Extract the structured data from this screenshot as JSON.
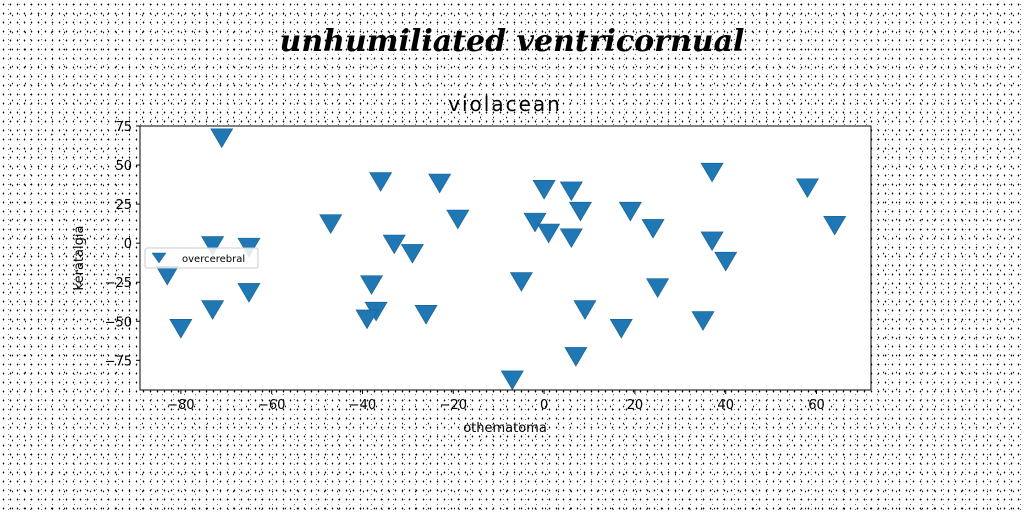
{
  "figure_title": "unhumiliated ventricornual",
  "chart_data": {
    "type": "scatter",
    "title": "violacean",
    "xlabel": "othematoma",
    "ylabel": "keratalgia",
    "xlim": [
      -89,
      72
    ],
    "ylim": [
      -94,
      75
    ],
    "xticks": [
      -80,
      -60,
      -40,
      -20,
      0,
      20,
      40,
      60
    ],
    "yticks": [
      75,
      50,
      25,
      0,
      -25,
      -50,
      -75
    ],
    "grid": false,
    "legend_position": "center-left",
    "marker": "triangle-down",
    "color": "#1f77b4",
    "series": [
      {
        "name": "overcerebral",
        "points": [
          [
            -71,
            69
          ],
          [
            -73,
            0
          ],
          [
            -65,
            -1
          ],
          [
            -83,
            -19
          ],
          [
            -65,
            -30
          ],
          [
            -73,
            -41
          ],
          [
            -80,
            -53
          ],
          [
            -47,
            14
          ],
          [
            -36,
            41
          ],
          [
            -33,
            1
          ],
          [
            -29,
            -5
          ],
          [
            -38,
            -25
          ],
          [
            -37,
            -42
          ],
          [
            -39,
            -47
          ],
          [
            -26,
            -44
          ],
          [
            -23,
            40
          ],
          [
            -19,
            17
          ],
          [
            -7,
            -86
          ],
          [
            -5,
            -23
          ],
          [
            0,
            36
          ],
          [
            -2,
            15
          ],
          [
            1,
            8
          ],
          [
            6,
            35
          ],
          [
            8,
            22
          ],
          [
            6,
            5
          ],
          [
            9,
            -41
          ],
          [
            7,
            -71
          ],
          [
            19,
            22
          ],
          [
            24,
            11
          ],
          [
            25,
            -27
          ],
          [
            17,
            -53
          ],
          [
            35,
            -48
          ],
          [
            37,
            47
          ],
          [
            37,
            3
          ],
          [
            40,
            -10
          ],
          [
            58,
            37
          ],
          [
            64,
            13
          ]
        ]
      }
    ]
  }
}
